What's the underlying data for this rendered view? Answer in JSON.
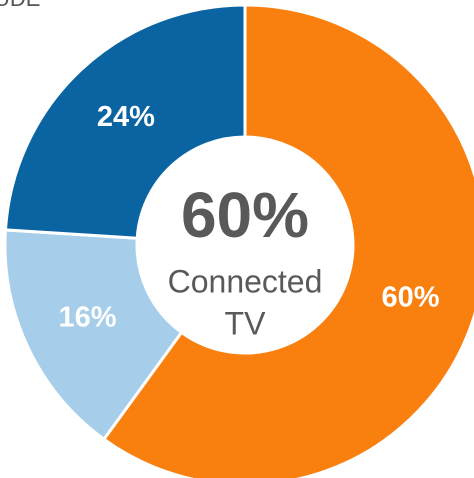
{
  "chart_data": {
    "type": "donut",
    "annotation": "UDE",
    "categories": [
      "Connected TV",
      null,
      null
    ],
    "values": [
      60,
      16,
      24
    ],
    "value_labels": [
      "60%",
      "16%",
      "24%"
    ],
    "colors": [
      "#f97f0f",
      "#a6cde9",
      "#0a64a2"
    ],
    "center_text": "60%",
    "center_label": [
      "Connected",
      "TV"
    ]
  }
}
